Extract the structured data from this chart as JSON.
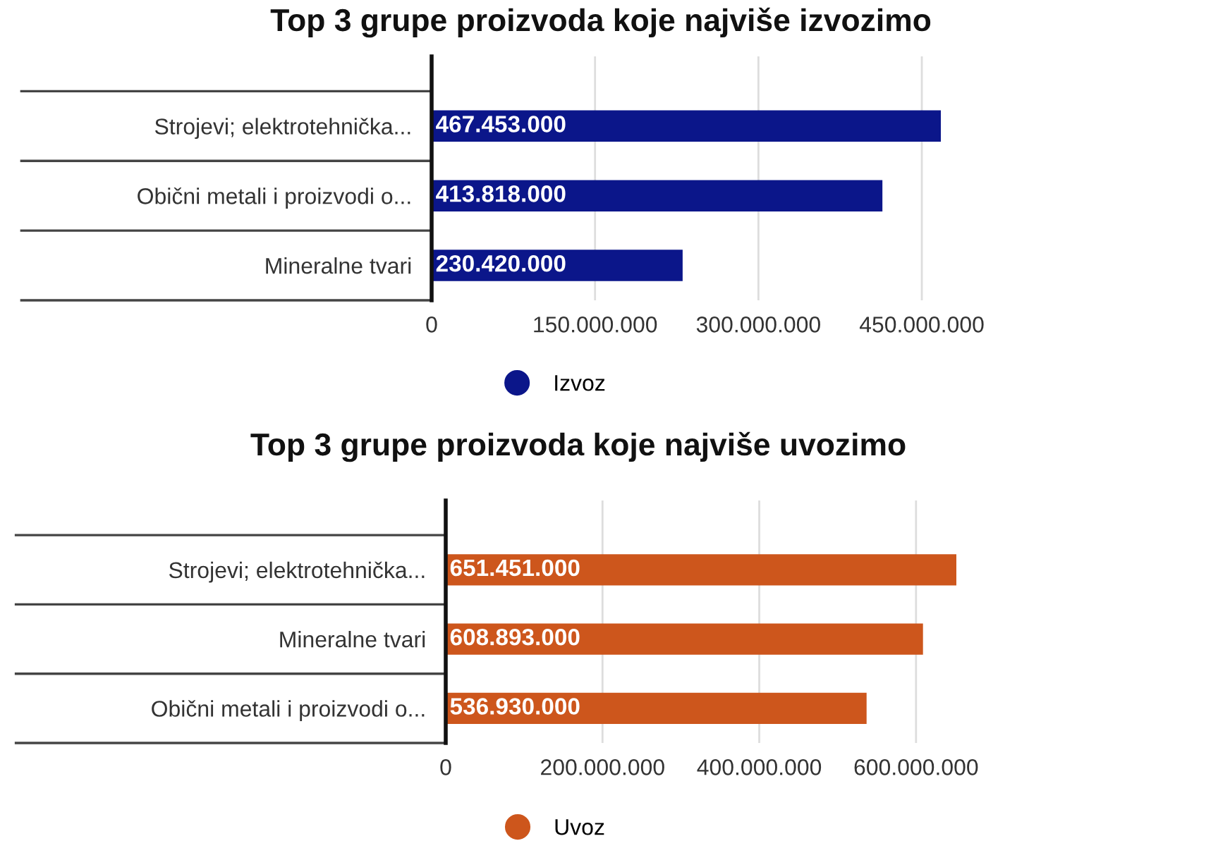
{
  "chart_data": [
    {
      "type": "bar",
      "orientation": "horizontal",
      "title": "Top 3 grupe proizvoda koje najviše izvozimo",
      "categories": [
        "Strojevi; elektrotehnička...",
        "Obični metali i proizvodi o...",
        "Mineralne tvari"
      ],
      "series": [
        {
          "name": "Izvoz",
          "color": "#0b168a",
          "values": [
            467453000,
            413818000,
            230420000
          ],
          "value_labels": [
            "467.453.000",
            "413.818.000",
            "230.420.000"
          ]
        }
      ],
      "xlim": [
        0,
        467453000
      ],
      "xticks": [
        0,
        {
          "value": 150000000,
          "label": "150.000.000"
        },
        {
          "value": 300000000,
          "label": "300.000.000"
        },
        {
          "value": 450000000,
          "label": "450.000.000"
        }
      ],
      "grid": "x",
      "legend": "bottom",
      "marker": "circle"
    },
    {
      "type": "bar",
      "orientation": "horizontal",
      "title": "Top 3 grupe proizvoda koje najviše uvozimo",
      "categories": [
        "Strojevi; elektrotehnička...",
        "Mineralne tvari",
        "Obični metali i proizvodi o..."
      ],
      "series": [
        {
          "name": "Uvoz",
          "color": "#cd561c",
          "values": [
            651451000,
            608893000,
            536930000
          ],
          "value_labels": [
            "651.451.000",
            "608.893.000",
            "536.930.000"
          ]
        }
      ],
      "xlim": [
        0,
        651451000
      ],
      "xticks": [
        0,
        {
          "value": 200000000,
          "label": "200.000.000"
        },
        {
          "value": 400000000,
          "label": "400.000.000"
        },
        {
          "value": 600000000,
          "label": "600.000.000"
        }
      ],
      "grid": "x",
      "legend": "bottom",
      "marker": "circle"
    }
  ]
}
